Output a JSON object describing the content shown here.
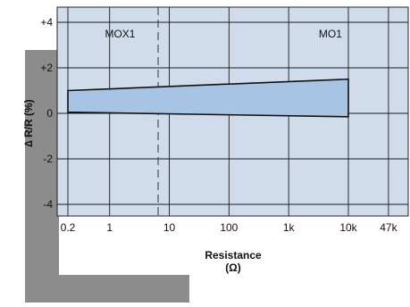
{
  "chart_data": {
    "type": "area",
    "title": "",
    "xlabel": "Resistance",
    "xlabel_unit": "(Ω)",
    "ylabel": "∆ R/R (%)",
    "x_scale": "log",
    "xlim": [
      0.15,
      60000
    ],
    "ylim": [
      -4.5,
      4.5
    ],
    "x_ticks": [
      {
        "value": 0.2,
        "label": "0.2"
      },
      {
        "value": 1,
        "label": "1"
      },
      {
        "value": 10,
        "label": "10"
      },
      {
        "value": 100,
        "label": "100"
      },
      {
        "value": 1000,
        "label": "1k"
      },
      {
        "value": 10000,
        "label": "10k"
      },
      {
        "value": 47000,
        "label": "47k"
      }
    ],
    "y_ticks": [
      {
        "value": 4,
        "label": "+4"
      },
      {
        "value": 2,
        "label": "+2"
      },
      {
        "value": 0,
        "label": "0"
      },
      {
        "value": -2,
        "label": "-2"
      },
      {
        "value": -4,
        "label": "-4"
      }
    ],
    "grid": true,
    "band": {
      "upper": [
        [
          0.2,
          1.0
        ],
        [
          10000,
          1.5
        ]
      ],
      "lower": [
        [
          0.2,
          0.05
        ],
        [
          10000,
          -0.15
        ]
      ]
    },
    "boundary_marker": {
      "x": 6.5,
      "style": "dashed"
    },
    "annotations": [
      {
        "label": "MOX1",
        "x": 1.5,
        "y": 3.5
      },
      {
        "label": "MO1",
        "x": 5000,
        "y": 3.5
      }
    ],
    "colors": {
      "plot_background": "#d0dcec",
      "band_fill": "#a8c4e4",
      "grid": "#1a1a1a",
      "side_bar": "#8c8c8c"
    }
  }
}
